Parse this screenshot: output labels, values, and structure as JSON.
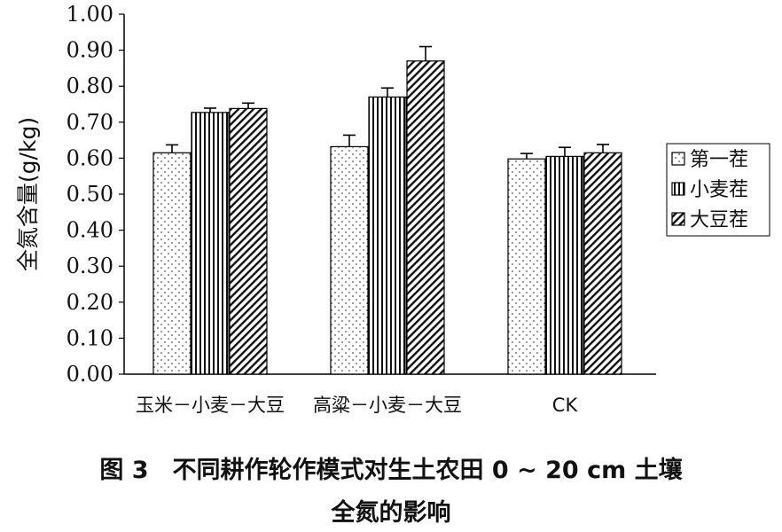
{
  "chart_data": {
    "type": "bar",
    "categories": [
      "玉米－小麦－大豆",
      "高粱－小麦－大豆",
      "CK"
    ],
    "series": [
      {
        "name": "第一茬",
        "values": [
          0.615,
          0.632,
          0.598
        ],
        "errors": [
          0.022,
          0.032,
          0.015
        ],
        "pattern": "dots"
      },
      {
        "name": "小麦茬",
        "values": [
          0.727,
          0.77,
          0.605
        ],
        "errors": [
          0.012,
          0.025,
          0.025
        ],
        "pattern": "vertical-lines"
      },
      {
        "name": "大豆茬",
        "values": [
          0.738,
          0.87,
          0.615
        ],
        "errors": [
          0.015,
          0.04,
          0.023
        ],
        "pattern": "diagonal-hatch"
      }
    ],
    "ylabel": "全氮含量(g/kg)",
    "xlabel": "",
    "ylim": [
      0.0,
      1.0
    ],
    "yticks": [
      "0.00",
      "0.10",
      "0.20",
      "0.30",
      "0.40",
      "0.50",
      "0.60",
      "0.70",
      "0.80",
      "0.90",
      "1.00"
    ],
    "legend_position": "right",
    "grid": false
  },
  "caption": {
    "line1": "图 3　不同耕作轮作模式对生土农田 0 ~ 20 cm 土壤",
    "line2": "全氮的影响"
  }
}
